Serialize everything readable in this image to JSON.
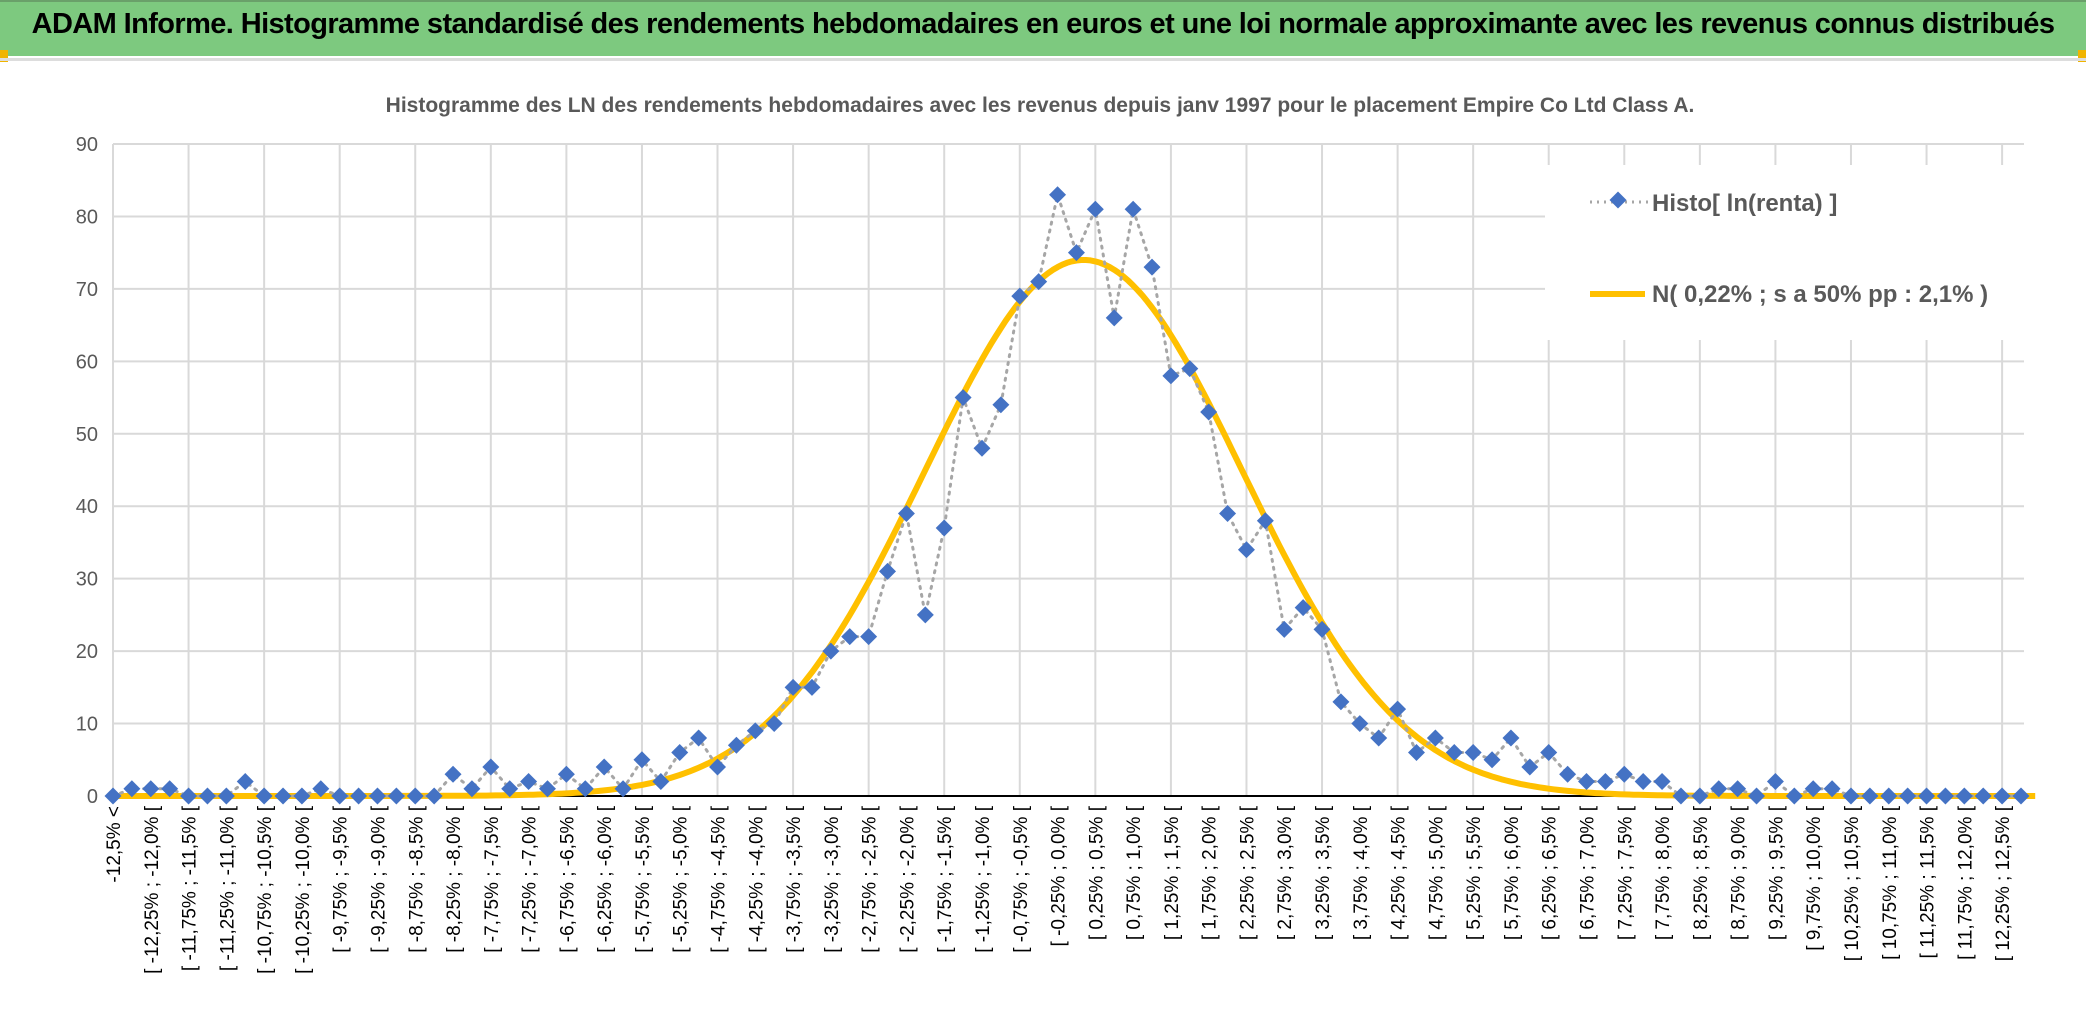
{
  "header": {
    "title": "ADAM Informe. Histogramme standardisé des rendements hebdomadaires en euros et une loi normale approximante avec les revenus connus distribués"
  },
  "chart_data": {
    "type": "line",
    "title": "Histogramme des LN des rendements hebdomadaires avec les revenus depuis janv 1997 pour le placement Empire Co Ltd Class A.",
    "xlabel": "",
    "ylabel": "",
    "ylim": [
      0,
      90
    ],
    "yticks": [
      "0",
      "10",
      "20",
      "30",
      "40",
      "50",
      "60",
      "70",
      "80",
      "90"
    ],
    "grid": true,
    "legend_position": "top-right",
    "x_tick_labels": [
      "-12,5% <",
      "[ -12,25% ; -12,0% [",
      "[ -11,75% ; -11,5% [",
      "[ -11,25% ; -11,0% [",
      "[ -10,75% ; -10,5% [",
      "[ -10,25% ; -10,0% [",
      "[ -9,75% ; -9,5% [",
      "[ -9,25% ; -9,0% [",
      "[ -8,75% ; -8,5% [",
      "[ -8,25% ; -8,0% [",
      "[ -7,75% ; -7,5% [",
      "[ -7,25% ; -7,0% [",
      "[ -6,75% ; -6,5% [",
      "[ -6,25% ; -6,0% [",
      "[ -5,75% ; -5,5% [",
      "[ -5,25% ; -5,0% [",
      "[ -4,75% ; -4,5% [",
      "[ -4,25% ; -4,0% [",
      "[ -3,75% ; -3,5% [",
      "[ -3,25% ; -3,0% [",
      "[ -2,75% ; -2,5% [",
      "[ -2,25% ; -2,0% [",
      "[ -1,75% ; -1,5% [",
      "[ -1,25% ; -1,0% [",
      "[ -0,75% ; -0,5% [",
      "[ -0,25% ; 0,0% [",
      "[ 0,25% ; 0,5% [",
      "[ 0,75% ; 1,0% [",
      "[ 1,25% ; 1,5% [",
      "[ 1,75% ; 2,0% [",
      "[ 2,25% ; 2,5% [",
      "[ 2,75% ; 3,0% [",
      "[ 3,25% ; 3,5% [",
      "[ 3,75% ; 4,0% [",
      "[ 4,25% ; 4,5% [",
      "[ 4,75% ; 5,0% [",
      "[ 5,25% ; 5,5% [",
      "[ 5,75% ; 6,0% [",
      "[ 6,25% ; 6,5% [",
      "[ 6,75% ; 7,0% [",
      "[ 7,25% ; 7,5% [",
      "[ 7,75% ; 8,0% [",
      "[ 8,25% ; 8,5% [",
      "[ 8,75% ; 9,0% [",
      "[ 9,25% ; 9,5% [",
      "[ 9,75% ; 10,0% [",
      "[ 10,25% ; 10,5% [",
      "[ 10,75% ; 11,0% [",
      "[ 11,25% ; 11,5% [",
      "[ 11,75% ; 12,0% [",
      "[ 12,25% ; 12,5% ["
    ],
    "series": [
      {
        "name": "Histo[ ln(renta) ]",
        "color": "#4472c4",
        "values": [
          0,
          1,
          1,
          1,
          0,
          0,
          0,
          2,
          0,
          0,
          0,
          1,
          0,
          0,
          0,
          0,
          0,
          0,
          3,
          1,
          4,
          1,
          2,
          1,
          3,
          1,
          4,
          1,
          5,
          2,
          6,
          8,
          4,
          7,
          9,
          10,
          15,
          15,
          20,
          22,
          22,
          31,
          39,
          25,
          37,
          55,
          48,
          54,
          69,
          71,
          83,
          75,
          81,
          66,
          81,
          73,
          58,
          59,
          53,
          39,
          34,
          38,
          23,
          26,
          23,
          13,
          10,
          8,
          12,
          6,
          8,
          6,
          6,
          5,
          8,
          4,
          6,
          3,
          2,
          2,
          3,
          2,
          2,
          0,
          0,
          1,
          1,
          0,
          2,
          0,
          1,
          1,
          0,
          0,
          0,
          0,
          0,
          0,
          0,
          0,
          0,
          0
        ]
      },
      {
        "name": "N( 0,22% ; s a 50% pp : 2,1% )",
        "color": "#ffc000",
        "mean_pct": 0.22,
        "sd_pct": 2.1,
        "peak": 74
      }
    ]
  }
}
